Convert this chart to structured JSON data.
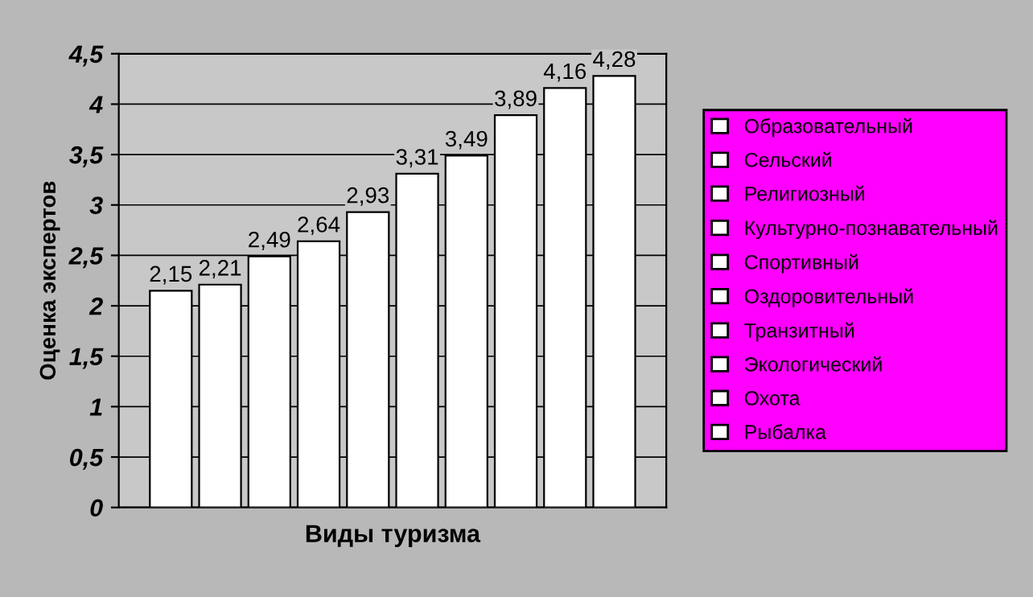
{
  "chart_data": {
    "type": "bar",
    "xlabel": "Виды туризма",
    "ylabel": "Оценка экспертов",
    "categories": [
      null
    ],
    "series": [
      {
        "name": "Образовательный",
        "color": "#ffffff",
        "values": [
          2.15
        ],
        "value_labels": [
          "2,15"
        ]
      },
      {
        "name": "Сельский",
        "color": "#ffffff",
        "values": [
          2.21
        ],
        "value_labels": [
          "2,21"
        ]
      },
      {
        "name": "Религиозный",
        "color": "#ffffff",
        "values": [
          2.49
        ],
        "value_labels": [
          "2,49"
        ]
      },
      {
        "name": "Культурно-познавательный",
        "color": "#ffffff",
        "values": [
          2.64
        ],
        "value_labels": [
          "2,64"
        ]
      },
      {
        "name": "Спортивный",
        "color": "#ffffff",
        "values": [
          2.93
        ],
        "value_labels": [
          "2,93"
        ]
      },
      {
        "name": "Оздоровительный",
        "color": "#ffffff",
        "values": [
          3.31
        ],
        "value_labels": [
          "3,31"
        ]
      },
      {
        "name": "Транзитный",
        "color": "#ffffff",
        "values": [
          3.49
        ],
        "value_labels": [
          "3,49"
        ]
      },
      {
        "name": "Экологический",
        "color": "#ffffff",
        "values": [
          3.89
        ],
        "value_labels": [
          "3,89"
        ]
      },
      {
        "name": "Охота",
        "color": "#ffffff",
        "values": [
          4.16
        ],
        "value_labels": [
          "4,16"
        ]
      },
      {
        "name": "Рыбалка",
        "color": "#ffffff",
        "values": [
          4.28
        ],
        "value_labels": [
          "4,28"
        ]
      }
    ],
    "ylim": [
      0,
      4.5
    ],
    "yticks": [
      0,
      {
        "value": 0.5,
        "label": "0,5"
      },
      1,
      {
        "value": 1.5,
        "label": "1,5"
      },
      2,
      {
        "value": 2.5,
        "label": "2,5"
      },
      3,
      {
        "value": 3.5,
        "label": "3,5"
      },
      4,
      {
        "value": 4.5,
        "label": "4,5"
      }
    ],
    "grid": "y",
    "legend": "right"
  }
}
